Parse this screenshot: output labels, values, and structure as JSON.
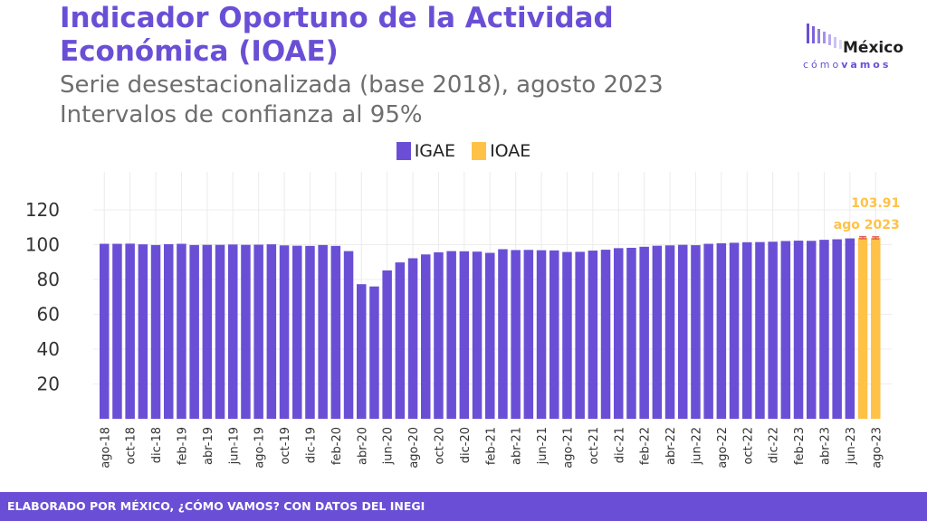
{
  "title_line1": "Indicador Oportuno de la Actividad",
  "title_line2": "Económica (IOAE)",
  "subtitle_line1": "Serie desestacionalizada (base 2018), agosto 2023",
  "subtitle_line2": "Intervalos de confianza al 95%",
  "logo": {
    "word": "México",
    "sub_light": "cómo",
    "sub_bold": "vamos"
  },
  "footer": "ELABORADO POR MÉXICO, ¿CÓMO VAMOS? CON DATOS DEL INEGI",
  "colors": {
    "igae": "#6a4fd6",
    "ioae": "#ffc247",
    "title": "#6a4fd6",
    "footer_bg": "#6a4fd6"
  },
  "chart_data": {
    "type": "bar",
    "ylim": [
      0,
      130
    ],
    "yticks": [
      20,
      40,
      60,
      80,
      100,
      120
    ],
    "grid": true,
    "legend_position": "top-center",
    "series": [
      {
        "name": "IGAE",
        "color": "#6a4fd6",
        "values": [
          100.5,
          100.5,
          100.6,
          100.2,
          99.8,
          100.3,
          100.5,
          99.8,
          99.9,
          99.9,
          100.1,
          99.9,
          100.0,
          100.2,
          99.6,
          99.4,
          99.3,
          99.8,
          99.3,
          96.3,
          77.3,
          76.0,
          85.2,
          89.8,
          92.2,
          94.4,
          95.6,
          96.3,
          96.2,
          96.0,
          95.3,
          97.4,
          96.9,
          97.0,
          96.8,
          96.7,
          95.8,
          95.9,
          96.6,
          97.1,
          98.0,
          98.2,
          98.8,
          99.4,
          99.6,
          99.9,
          99.7,
          100.5,
          100.8,
          101.1,
          101.4,
          101.5,
          101.7,
          102.1,
          102.3,
          102.2,
          102.8,
          103.1,
          103.6,
          null,
          null
        ]
      },
      {
        "name": "IOAE",
        "color": "#ffc247",
        "values": [
          null,
          null,
          null,
          null,
          null,
          null,
          null,
          null,
          null,
          null,
          null,
          null,
          null,
          null,
          null,
          null,
          null,
          null,
          null,
          null,
          null,
          null,
          null,
          null,
          null,
          null,
          null,
          null,
          null,
          null,
          null,
          null,
          null,
          null,
          null,
          null,
          null,
          null,
          null,
          null,
          null,
          null,
          null,
          null,
          null,
          null,
          null,
          null,
          null,
          null,
          null,
          null,
          null,
          null,
          null,
          null,
          null,
          null,
          null,
          104.0,
          103.91
        ],
        "ci": [
          [
            103.4,
            104.6
          ],
          [
            103.3,
            104.5
          ]
        ]
      }
    ],
    "x_labels": [
      "ago-18",
      "oct-18",
      "dic-18",
      "feb-19",
      "abr-19",
      "jun-19",
      "ago-19",
      "oct-19",
      "dic-19",
      "feb-20",
      "abr-20",
      "jun-20",
      "ago-20",
      "oct-20",
      "dic-20",
      "feb-21",
      "abr-21",
      "jun-21",
      "ago-21",
      "oct-21",
      "dic-21",
      "feb-22",
      "abr-22",
      "jun-22",
      "ago-22",
      "oct-22",
      "dic-22",
      "feb-23",
      "abr-23",
      "jun-23",
      "ago-23"
    ],
    "annotation": {
      "value": "103.91",
      "period": "ago 2023"
    }
  }
}
